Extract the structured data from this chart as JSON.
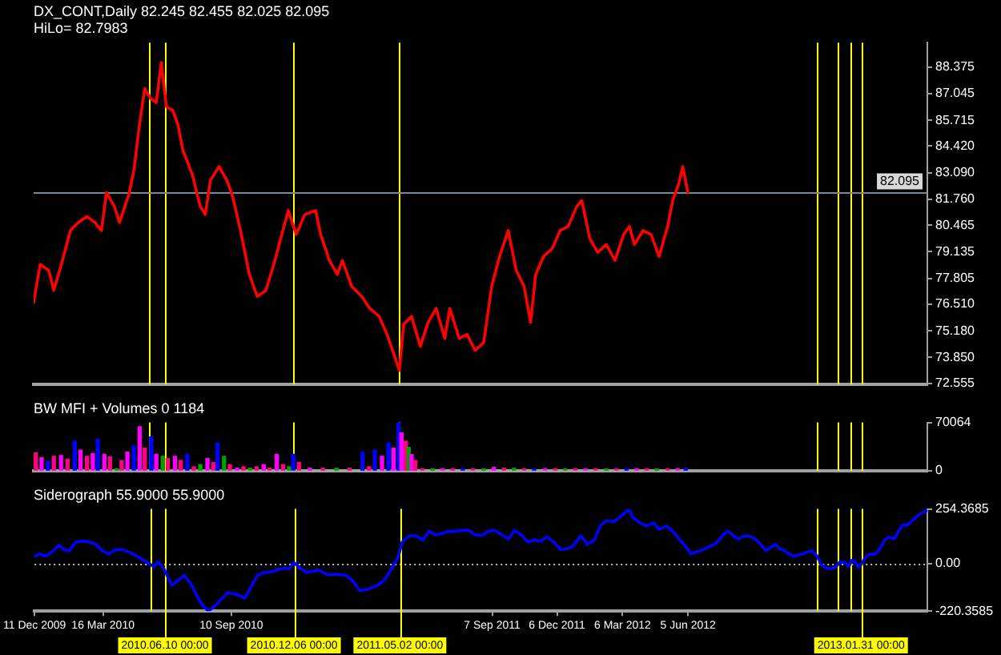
{
  "chart_data": [
    {
      "type": "line",
      "title": "DX_CONT,Daily 82.245 82.455 82.025 82.095",
      "subtitle": "HiLo= 82.7983",
      "color": "#ff0000",
      "x": [
        "2009-12-11",
        "2009-12-20",
        "2010-01-01",
        "2010-01-08",
        "2010-01-20",
        "2010-01-31",
        "2010-02-11",
        "2010-02-23",
        "2010-03-06",
        "2010-03-15",
        "2010-03-22",
        "2010-04-02",
        "2010-04-09",
        "2010-04-22",
        "2010-04-29",
        "2010-05-06",
        "2010-05-14",
        "2010-05-22",
        "2010-05-30",
        "2010-06-06",
        "2010-06-13",
        "2010-06-22",
        "2010-06-29",
        "2010-07-06",
        "2010-07-19",
        "2010-07-30",
        "2010-08-06",
        "2010-08-13",
        "2010-08-25",
        "2010-09-05",
        "2010-09-13",
        "2010-09-25",
        "2010-10-06",
        "2010-10-17",
        "2010-10-29",
        "2010-11-09",
        "2010-11-20",
        "2010-11-29",
        "2010-12-10",
        "2010-12-22",
        "2011-01-06",
        "2011-01-13",
        "2011-01-25",
        "2011-02-05",
        "2011-02-12",
        "2011-02-25",
        "2011-03-11",
        "2011-03-22",
        "2011-04-04",
        "2011-04-15",
        "2011-05-02",
        "2011-05-08",
        "2011-05-19",
        "2011-05-31",
        "2011-06-11",
        "2011-06-22",
        "2011-07-04",
        "2011-07-11",
        "2011-07-24",
        "2011-08-04",
        "2011-08-15",
        "2011-08-27",
        "2011-09-07",
        "2011-09-18",
        "2011-09-30",
        "2011-10-11",
        "2011-10-22",
        "2011-10-31",
        "2011-11-07",
        "2011-11-18",
        "2011-11-30",
        "2011-12-11",
        "2011-12-22",
        "2012-01-03",
        "2012-01-10",
        "2012-01-21",
        "2012-02-01",
        "2012-02-13",
        "2012-02-25",
        "2012-03-08",
        "2012-03-16",
        "2012-03-23",
        "2012-04-04",
        "2012-04-15",
        "2012-04-26",
        "2012-05-08",
        "2012-05-15",
        "2012-05-23",
        "2012-05-29",
        "2012-06-05"
      ],
      "values": [
        76.6,
        78.5,
        78.2,
        77.2,
        78.7,
        80.2,
        80.6,
        80.9,
        80.6,
        80.2,
        82.1,
        81.4,
        80.6,
        82.0,
        83.2,
        85.3,
        87.3,
        86.8,
        86.6,
        88.6,
        86.4,
        86.2,
        85.5,
        84.2,
        83.0,
        81.4,
        81.0,
        82.7,
        83.4,
        82.7,
        81.9,
        80.0,
        78.0,
        76.9,
        77.2,
        78.5,
        80.0,
        81.2,
        80.0,
        81.0,
        81.2,
        80.0,
        78.7,
        78.0,
        78.7,
        77.4,
        76.9,
        76.3,
        75.9,
        75.0,
        73.2,
        75.5,
        75.9,
        74.4,
        75.6,
        76.3,
        74.8,
        76.3,
        74.8,
        75.0,
        74.2,
        74.6,
        77.4,
        78.9,
        80.2,
        78.2,
        77.4,
        75.6,
        78.0,
        78.9,
        79.3,
        80.2,
        80.4,
        81.4,
        81.7,
        79.8,
        79.1,
        79.5,
        78.7,
        80.0,
        80.4,
        79.5,
        80.2,
        80.0,
        78.9,
        80.4,
        81.7,
        82.5,
        83.4,
        82.1
      ],
      "xlim": [
        "2009-12-11",
        "2013-05-03"
      ],
      "ylim": [
        72.5,
        89.6
      ],
      "yticks": [
        72.555,
        {
          "value": 73.85,
          "label": "73.850"
        },
        {
          "value": 75.18,
          "label": "75.180"
        },
        {
          "value": 76.51,
          "label": "76.510"
        },
        77.805,
        79.135,
        80.465,
        {
          "value": 81.76,
          "label": "81.760"
        },
        {
          "value": 83.09,
          "label": "83.090"
        },
        {
          "value": 84.42,
          "label": "84.420"
        },
        85.715,
        87.045,
        88.375
      ],
      "tick_labels": "y",
      "ref_lines": [
        {
          "axis": "x",
          "value": "2010-05-20",
          "color": "#ffff00"
        },
        {
          "axis": "x",
          "value": "2010-06-10",
          "color": "#ffff00"
        },
        {
          "axis": "x",
          "value": "2010-12-06",
          "color": "#ffff00"
        },
        {
          "axis": "x",
          "value": "2011-05-02",
          "color": "#ffff00"
        },
        {
          "axis": "x",
          "value": "2012-12-01",
          "color": "#ffff00"
        },
        {
          "axis": "x",
          "value": "2012-12-29",
          "color": "#ffff00"
        },
        {
          "axis": "x",
          "value": "2013-01-16",
          "color": "#ffff00"
        },
        {
          "axis": "x",
          "value": "2013-01-31",
          "color": "#ffff00"
        },
        {
          "axis": "y",
          "value": 82.095,
          "label": "82.095",
          "color": "#778899"
        }
      ]
    },
    {
      "type": "bar",
      "title": "BW MFI + Volumes 0 1184",
      "x": [
        "2009-12-14",
        "2009-12-22",
        "2009-12-31",
        "2010-01-08",
        "2010-01-18",
        "2010-01-27",
        "2010-02-06",
        "2010-02-14",
        "2010-02-23",
        "2010-03-03",
        "2010-03-10",
        "2010-03-19",
        "2010-03-27",
        "2010-04-05",
        "2010-04-12",
        "2010-04-20",
        "2010-04-29",
        "2010-05-07",
        "2010-05-14",
        "2010-05-23",
        "2010-05-30",
        "2010-06-08",
        "2010-06-15",
        "2010-06-25",
        "2010-07-03",
        "2010-07-12",
        "2010-07-21",
        "2010-07-30",
        "2010-08-09",
        "2010-08-17",
        "2010-08-23",
        "2010-09-01",
        "2010-09-09",
        "2010-09-19",
        "2010-09-28",
        "2010-10-07",
        "2010-10-16",
        "2010-10-26",
        "2010-11-03",
        "2010-11-13",
        "2010-11-22",
        "2010-11-30",
        "2010-12-06",
        "2010-12-14",
        "2010-12-29",
        "2011-01-16",
        "2011-02-04",
        "2011-02-22",
        "2011-03-12",
        "2011-03-21",
        "2011-03-29",
        "2011-04-08",
        "2011-04-17",
        "2011-04-24",
        "2011-05-01",
        "2011-05-05",
        "2011-05-11",
        "2011-05-15",
        "2011-05-19",
        "2011-05-24",
        "2011-06-03",
        "2011-06-17",
        "2011-07-01",
        "2011-07-15",
        "2011-07-29",
        "2011-08-12",
        "2011-08-27",
        "2011-09-10",
        "2011-09-24",
        "2011-10-08",
        "2011-10-22",
        "2011-11-05",
        "2011-11-20",
        "2011-12-04",
        "2011-12-18",
        "2012-01-01",
        "2012-01-15",
        "2012-01-29",
        "2012-02-13",
        "2012-02-27",
        "2012-03-12",
        "2012-03-26",
        "2012-04-09",
        "2012-04-23",
        "2012-05-08",
        "2012-05-22",
        "2012-06-02"
      ],
      "values": [
        26000,
        19000,
        14000,
        21000,
        22000,
        17000,
        43000,
        30000,
        21000,
        25000,
        46000,
        24000,
        20000,
        3000,
        15000,
        27000,
        36000,
        64000,
        33000,
        49000,
        24000,
        21000,
        18000,
        21000,
        15000,
        24000,
        6000,
        9000,
        18000,
        12000,
        40000,
        21000,
        9000,
        4000,
        6000,
        4000,
        6000,
        9000,
        4000,
        24000,
        9000,
        6000,
        24000,
        12000,
        4000,
        4000,
        4000,
        4000,
        27000,
        6000,
        30000,
        21000,
        40000,
        33000,
        70000,
        55000,
        43000,
        34000,
        24000,
        15000,
        3000,
        3000,
        3000,
        3000,
        3000,
        3000,
        3000,
        5000,
        4000,
        4000,
        3000,
        3000,
        3000,
        3000,
        3000,
        3000,
        3000,
        3000,
        3000,
        3000,
        3000,
        3000,
        3000,
        3000,
        3000,
        3000,
        4000
      ],
      "colors": [
        "#ff0080",
        "#ff00ff",
        "#0000ff",
        "#ff0080",
        "#ff00ff",
        "#ff0080",
        "#0000ff",
        "#ff00ff",
        "#ff0080",
        "#ff00ff",
        "#0000ff",
        "#ff00ff",
        "#ff0080",
        "#00a000",
        "#ff0080",
        "#ff00ff",
        "#0000ff",
        "#ff00ff",
        "#ff0080",
        "#0000ff",
        "#ff00ff",
        "#00a000",
        "#ff0080",
        "#ff00ff",
        "#ff0080",
        "#0000ff",
        "#ff0080",
        "#00a000",
        "#ff00ff",
        "#ff0080",
        "#0000ff",
        "#00a000",
        "#ff0080",
        "#ff00ff",
        "#ff0080",
        "#00a000",
        "#ff0080",
        "#ff00ff",
        "#ff0080",
        "#ff00ff",
        "#ff0080",
        "#00a000",
        "#0000ff",
        "#ff0080",
        "#ff00ff",
        "#ff0080",
        "#00a000",
        "#ff0080",
        "#0000ff",
        "#ff0080",
        "#0000ff",
        "#ff00ff",
        "#0000ff",
        "#ff00ff",
        "#0000ff",
        "#ff00ff",
        "#ff0080",
        "#00a000",
        "#ff00ff",
        "#ff0080",
        "#ff0080",
        "#00a000",
        "#ff00ff",
        "#ff0080",
        "#0000ff",
        "#ff0080",
        "#00a000",
        "#ff00ff",
        "#ff0080",
        "#00a000",
        "#ff0080",
        "#0000ff",
        "#ff00ff",
        "#ff0080",
        "#00a000",
        "#ff0080",
        "#ff00ff",
        "#ff0080",
        "#00a000",
        "#ff0080",
        "#0000ff",
        "#ff00ff",
        "#ff0080",
        "#00a000",
        "#ff0080",
        "#ff00ff",
        "#0000ff"
      ],
      "xlim": [
        "2009-12-11",
        "2013-05-03"
      ],
      "ylim": [
        0,
        70064
      ],
      "yticks": [
        0,
        70064
      ],
      "tick_labels": "y",
      "ref_lines": [
        {
          "axis": "x",
          "value": "2010-05-20",
          "color": "#ffff00"
        },
        {
          "axis": "x",
          "value": "2010-06-10",
          "color": "#ffff00"
        },
        {
          "axis": "x",
          "value": "2010-12-06",
          "color": "#ffff00"
        },
        {
          "axis": "x",
          "value": "2011-05-02",
          "color": "#ffff00"
        },
        {
          "axis": "x",
          "value": "2012-12-01",
          "color": "#ffff00"
        },
        {
          "axis": "x",
          "value": "2012-12-29",
          "color": "#ffff00"
        },
        {
          "axis": "x",
          "value": "2013-01-16",
          "color": "#ffff00"
        },
        {
          "axis": "x",
          "value": "2013-01-31",
          "color": "#ffff00"
        }
      ]
    },
    {
      "type": "line",
      "title": "Siderograph 55.9000 55.9000",
      "color": "#0000ff",
      "x": [
        "2009-12-11",
        "2009-12-18",
        "2009-12-27",
        "2010-01-06",
        "2010-01-14",
        "2010-01-21",
        "2010-01-28",
        "2010-02-06",
        "2010-02-16",
        "2010-02-24",
        "2010-03-06",
        "2010-03-15",
        "2010-03-24",
        "2010-04-02",
        "2010-04-12",
        "2010-04-20",
        "2010-04-30",
        "2010-05-09",
        "2010-05-17",
        "2010-05-26",
        "2010-05-31",
        "2010-06-08",
        "2010-06-15",
        "2010-06-20",
        "2010-06-29",
        "2010-07-07",
        "2010-07-16",
        "2010-07-26",
        "2010-08-03",
        "2010-08-09",
        "2010-08-17",
        "2010-08-27",
        "2010-09-05",
        "2010-09-13",
        "2010-09-23",
        "2010-09-29",
        "2010-10-07",
        "2010-10-16",
        "2010-10-26",
        "2010-11-03",
        "2010-11-12",
        "2010-11-22",
        "2010-11-29",
        "2010-12-06",
        "2010-12-14",
        "2010-12-24",
        "2011-01-02",
        "2011-01-10",
        "2011-01-20",
        "2011-02-08",
        "2011-02-16",
        "2011-02-26",
        "2011-03-07",
        "2011-03-17",
        "2011-03-25",
        "2011-04-04",
        "2011-04-13",
        "2011-04-21",
        "2011-04-30",
        "2011-05-05",
        "2011-05-15",
        "2011-05-24",
        "2011-06-03",
        "2011-06-11",
        "2011-06-20",
        "2011-06-29",
        "2011-07-08",
        "2011-07-18",
        "2011-07-26",
        "2011-08-05",
        "2011-08-14",
        "2011-08-24",
        "2011-09-01",
        "2011-09-11",
        "2011-09-20",
        "2011-09-30",
        "2011-10-08",
        "2011-10-17",
        "2011-10-27",
        "2011-11-04",
        "2011-11-14",
        "2011-11-22",
        "2011-12-02",
        "2011-12-11",
        "2011-12-21",
        "2011-12-29",
        "2012-01-08",
        "2012-01-17",
        "2012-01-27",
        "2012-02-04",
        "2012-02-13",
        "2012-02-23",
        "2012-03-02",
        "2012-03-15",
        "2012-03-20",
        "2012-03-30",
        "2012-04-08",
        "2012-04-18",
        "2012-04-26",
        "2012-05-06",
        "2012-05-15",
        "2012-05-25",
        "2012-06-02",
        "2012-06-09",
        "2012-06-16",
        "2012-06-22",
        "2012-06-29",
        "2012-07-05",
        "2012-07-12",
        "2012-07-18",
        "2012-07-25",
        "2012-07-31",
        "2012-08-07",
        "2012-08-13",
        "2012-08-20",
        "2012-08-26",
        "2012-09-01",
        "2012-09-08",
        "2012-09-14",
        "2012-09-21",
        "2012-10-04",
        "2012-10-10",
        "2012-10-17",
        "2012-10-23",
        "2012-10-30",
        "2012-11-05",
        "2012-11-11",
        "2012-11-18",
        "2012-11-24",
        "2012-12-01",
        "2012-12-07",
        "2012-12-14",
        "2012-12-20",
        "2012-12-27",
        "2013-01-02",
        "2013-01-09",
        "2013-01-14",
        "2013-01-18",
        "2013-01-23",
        "2013-01-27",
        "2013-01-31",
        "2013-02-07",
        "2013-02-13",
        "2013-02-20",
        "2013-02-26",
        "2013-03-05",
        "2013-03-11",
        "2013-03-18",
        "2013-03-24",
        "2013-03-30",
        "2013-04-06",
        "2013-04-12",
        "2013-04-19",
        "2013-04-25",
        "2013-05-02"
      ],
      "values": [
        35,
        45,
        35,
        60,
        85,
        65,
        60,
        100,
        105,
        100,
        90,
        60,
        45,
        65,
        65,
        55,
        40,
        20,
        5,
        -15,
        10,
        -20,
        -70,
        -100,
        -75,
        -55,
        -95,
        -160,
        -200,
        -220,
        -200,
        -165,
        -135,
        -140,
        -150,
        -160,
        -110,
        -55,
        -40,
        -40,
        -30,
        -20,
        -25,
        5,
        -20,
        -40,
        -35,
        -30,
        -50,
        -50,
        -55,
        -80,
        -125,
        -120,
        -110,
        -95,
        -65,
        -20,
        35,
        100,
        130,
        130,
        110,
        150,
        135,
        140,
        150,
        150,
        155,
        155,
        135,
        130,
        150,
        155,
        135,
        115,
        155,
        135,
        100,
        110,
        105,
        125,
        100,
        65,
        70,
        85,
        130,
        90,
        110,
        175,
        200,
        195,
        215,
        254,
        215,
        190,
        175,
        190,
        160,
        175,
        150,
        110,
        80,
        45,
        55,
        60,
        70,
        80,
        90,
        110,
        140,
        150,
        130,
        115,
        125,
        130,
        125,
        110,
        90,
        60,
        90,
        70,
        60,
        45,
        35,
        40,
        45,
        55,
        60,
        35,
        -5,
        -20,
        -25,
        -15,
        10,
        5,
        -15,
        15,
        10,
        -15,
        -5,
        35,
        45,
        45,
        70,
        110,
        125,
        115,
        150,
        180,
        180,
        200,
        220,
        235,
        245
      ],
      "xlim": [
        "2009-12-11",
        "2013-05-03"
      ],
      "xticks": [
        {
          "value": "2009-12-11",
          "label": "11 Dec 2009"
        },
        {
          "value": "2010-03-16",
          "label": "16 Mar 2010"
        },
        {
          "value": "2010-09-10",
          "label": "10 Sep 2010"
        },
        {
          "value": "2011-09-07",
          "label": "7 Sep 2011"
        },
        {
          "value": "2011-12-06",
          "label": "6 Dec 2011"
        },
        {
          "value": "2012-03-06",
          "label": "6 Mar 2012"
        },
        {
          "value": "2012-06-05",
          "label": "5 Jun 2012"
        }
      ],
      "ylim": [
        -220.3585,
        254.3685
      ],
      "yticks": [
        -220.3585,
        {
          "value": 0,
          "label": "0.00"
        },
        254.3685
      ],
      "ref_lines": [
        {
          "axis": "y",
          "value": 0,
          "color": "#c0c0c0",
          "line_style": "dotted"
        },
        {
          "axis": "x",
          "value": "2010-05-20",
          "color": "#ffff00"
        },
        {
          "axis": "x",
          "value": "2010-06-10",
          "color": "#ffff00",
          "label": "2010.06.10 00:00"
        },
        {
          "axis": "x",
          "value": "2010-12-06",
          "color": "#ffff00",
          "label": "2010.12.06 00:00"
        },
        {
          "axis": "x",
          "value": "2011-05-02",
          "color": "#ffff00",
          "label": "2011.05.02 00:00"
        },
        {
          "axis": "x",
          "value": "2012-12-01",
          "color": "#ffff00"
        },
        {
          "axis": "x",
          "value": "2012-12-29",
          "color": "#ffff00"
        },
        {
          "axis": "x",
          "value": "2013-01-16",
          "color": "#ffff00"
        },
        {
          "axis": "x",
          "value": "2013-01-31",
          "color": "#ffff00",
          "label": "2013.01.31 00:00"
        }
      ]
    }
  ]
}
